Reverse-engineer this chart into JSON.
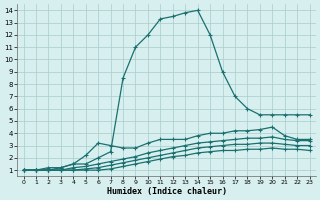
{
  "xlabel": "Humidex (Indice chaleur)",
  "ylabel": "",
  "xlim": [
    -0.5,
    23.5
  ],
  "ylim": [
    0.5,
    14.5
  ],
  "xticks": [
    0,
    1,
    2,
    3,
    4,
    5,
    6,
    7,
    8,
    9,
    10,
    11,
    12,
    13,
    14,
    15,
    16,
    17,
    18,
    19,
    20,
    21,
    22,
    23
  ],
  "yticks": [
    1,
    2,
    3,
    4,
    5,
    6,
    7,
    8,
    9,
    10,
    11,
    12,
    13,
    14
  ],
  "bg_color": "#d8efef",
  "line_color": "#1a7070",
  "grid_color": "#a8cccc",
  "lines": [
    {
      "x": [
        0,
        1,
        2,
        3,
        4,
        5,
        6,
        7,
        8,
        9,
        10,
        11,
        12,
        13,
        14,
        15,
        16,
        17,
        18,
        19,
        20,
        21,
        22,
        23
      ],
      "y": [
        1.0,
        1.0,
        1.2,
        1.2,
        1.5,
        1.5,
        2.0,
        2.5,
        8.5,
        11.0,
        12.0,
        13.3,
        13.5,
        13.8,
        14.0,
        12.0,
        9.0,
        7.0,
        6.0,
        5.5,
        5.5,
        5.5,
        5.5,
        5.5
      ]
    },
    {
      "x": [
        0,
        1,
        2,
        3,
        4,
        5,
        6,
        7,
        8,
        9,
        10,
        11,
        12,
        13,
        14,
        15,
        16,
        17,
        18,
        19,
        20,
        21,
        22,
        23
      ],
      "y": [
        1.0,
        1.0,
        1.0,
        1.2,
        1.5,
        2.2,
        3.2,
        3.0,
        2.8,
        2.8,
        3.2,
        3.5,
        3.5,
        3.5,
        3.8,
        4.0,
        4.0,
        4.2,
        4.2,
        4.3,
        4.5,
        3.8,
        3.5,
        3.5
      ]
    },
    {
      "x": [
        0,
        1,
        2,
        3,
        4,
        5,
        6,
        7,
        8,
        9,
        10,
        11,
        12,
        13,
        14,
        15,
        16,
        17,
        18,
        19,
        20,
        21,
        22,
        23
      ],
      "y": [
        1.0,
        1.0,
        1.0,
        1.0,
        1.2,
        1.3,
        1.5,
        1.7,
        1.9,
        2.1,
        2.4,
        2.6,
        2.8,
        3.0,
        3.2,
        3.3,
        3.4,
        3.5,
        3.6,
        3.6,
        3.7,
        3.5,
        3.4,
        3.4
      ]
    },
    {
      "x": [
        0,
        1,
        2,
        3,
        4,
        5,
        6,
        7,
        8,
        9,
        10,
        11,
        12,
        13,
        14,
        15,
        16,
        17,
        18,
        19,
        20,
        21,
        22,
        23
      ],
      "y": [
        1.0,
        1.0,
        1.0,
        1.0,
        1.0,
        1.1,
        1.2,
        1.4,
        1.6,
        1.8,
        2.0,
        2.2,
        2.4,
        2.6,
        2.8,
        2.9,
        3.0,
        3.1,
        3.1,
        3.2,
        3.2,
        3.1,
        3.0,
        3.0
      ]
    },
    {
      "x": [
        0,
        1,
        2,
        3,
        4,
        5,
        6,
        7,
        8,
        9,
        10,
        11,
        12,
        13,
        14,
        15,
        16,
        17,
        18,
        19,
        20,
        21,
        22,
        23
      ],
      "y": [
        1.0,
        1.0,
        1.0,
        1.0,
        1.0,
        1.0,
        1.0,
        1.1,
        1.3,
        1.5,
        1.7,
        1.9,
        2.1,
        2.2,
        2.4,
        2.5,
        2.6,
        2.6,
        2.7,
        2.7,
        2.8,
        2.7,
        2.7,
        2.6
      ]
    }
  ],
  "marker": "+",
  "markersize": 3.5,
  "linewidth": 0.9
}
